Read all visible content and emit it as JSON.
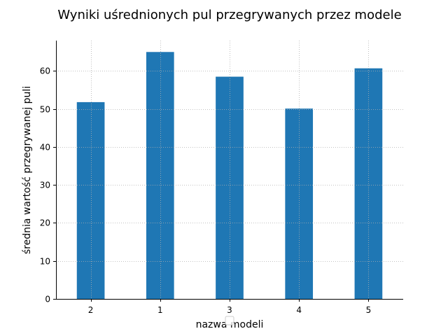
{
  "chart_data": {
    "type": "bar",
    "title": "Wyniki uśrednionych pul przegrywanych przez modele",
    "xlabel": "nazwa modeli",
    "ylabel": "średnia wartość przegrywanej puli",
    "categories": [
      "2",
      "1",
      "3",
      "4",
      "5"
    ],
    "values": [
      51.8,
      65.0,
      58.5,
      50.1,
      60.7
    ],
    "ylim": [
      0,
      68
    ],
    "yticks": [
      0,
      10,
      20,
      30,
      40,
      50,
      60
    ],
    "grid": true,
    "legend": "bottom-center",
    "bar_color": "#1f77b4",
    "grid_color": "#b0b0b0"
  }
}
